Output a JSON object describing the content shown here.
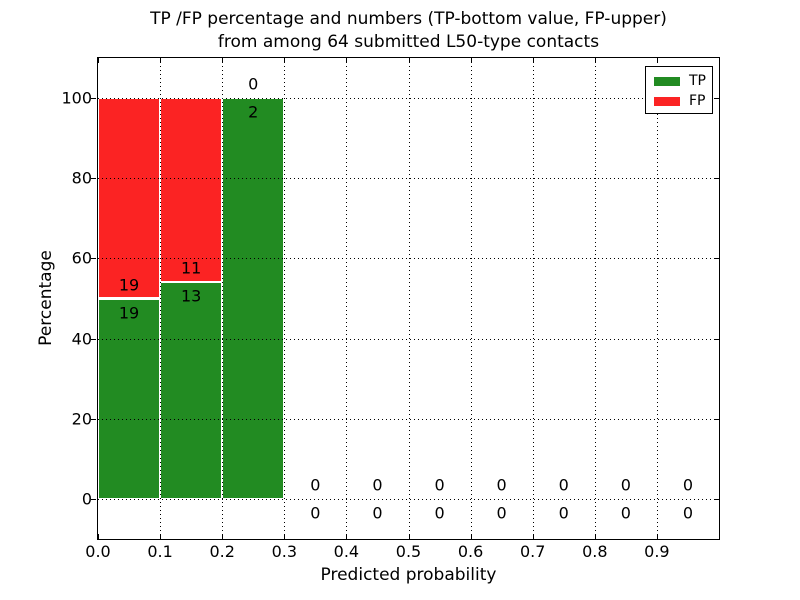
{
  "figure": {
    "title_lines": [
      "TP /FP percentage and numbers (TP-bottom value, FP-upper)",
      "from among 64 submitted L50-type contacts"
    ]
  },
  "legend": {
    "items": [
      {
        "label": "TP",
        "color": "#228b22"
      },
      {
        "label": "FP",
        "color": "#fb2323"
      }
    ]
  },
  "chart_data": {
    "type": "bar",
    "stacked": true,
    "units": "percent",
    "title": "TP /FP percentage and numbers (TP-bottom value, FP-upper) from among 64 submitted L50-type contacts",
    "xlabel": "Predicted probability",
    "ylabel": "Percentage",
    "xlim": [
      0.0,
      1.0
    ],
    "ylim": [
      -10,
      110
    ],
    "grid": "dotted",
    "legend_position": "upper right",
    "total_contacts": 64,
    "x_ticks": [
      "0.0",
      "0.1",
      "0.2",
      "0.3",
      "0.4",
      "0.5",
      "0.6",
      "0.7",
      "0.8",
      "0.9"
    ],
    "y_ticks": [
      0,
      20,
      40,
      60,
      80,
      100
    ],
    "bin_edges": [
      0.0,
      0.1,
      0.2,
      0.3,
      0.4,
      0.5,
      0.6,
      0.7,
      0.8,
      0.9,
      1.0
    ],
    "bins": [
      {
        "range": [
          0.0,
          0.1
        ],
        "tp_count": 19,
        "fp_count": 19,
        "tp_percent": 50.0,
        "fp_percent": 50.0
      },
      {
        "range": [
          0.1,
          0.2
        ],
        "tp_count": 13,
        "fp_count": 11,
        "tp_percent": 54.2,
        "fp_percent": 45.8
      },
      {
        "range": [
          0.2,
          0.3
        ],
        "tp_count": 2,
        "fp_count": 0,
        "tp_percent": 100.0,
        "fp_percent": 0.0
      },
      {
        "range": [
          0.3,
          0.4
        ],
        "tp_count": 0,
        "fp_count": 0,
        "tp_percent": 0,
        "fp_percent": 0
      },
      {
        "range": [
          0.4,
          0.5
        ],
        "tp_count": 0,
        "fp_count": 0,
        "tp_percent": 0,
        "fp_percent": 0
      },
      {
        "range": [
          0.5,
          0.6
        ],
        "tp_count": 0,
        "fp_count": 0,
        "tp_percent": 0,
        "fp_percent": 0
      },
      {
        "range": [
          0.6,
          0.7
        ],
        "tp_count": 0,
        "fp_count": 0,
        "tp_percent": 0,
        "fp_percent": 0
      },
      {
        "range": [
          0.7,
          0.8
        ],
        "tp_count": 0,
        "fp_count": 0,
        "tp_percent": 0,
        "fp_percent": 0
      },
      {
        "range": [
          0.8,
          0.9
        ],
        "tp_count": 0,
        "fp_count": 0,
        "tp_percent": 0,
        "fp_percent": 0
      },
      {
        "range": [
          0.9,
          1.0
        ],
        "tp_count": 0,
        "fp_count": 0,
        "tp_percent": 0,
        "fp_percent": 0
      }
    ],
    "series": [
      {
        "name": "TP",
        "color": "#228b22",
        "counts": [
          19,
          13,
          2,
          0,
          0,
          0,
          0,
          0,
          0,
          0
        ]
      },
      {
        "name": "FP",
        "color": "#fb2323",
        "counts": [
          19,
          11,
          0,
          0,
          0,
          0,
          0,
          0,
          0,
          0
        ]
      }
    ]
  }
}
